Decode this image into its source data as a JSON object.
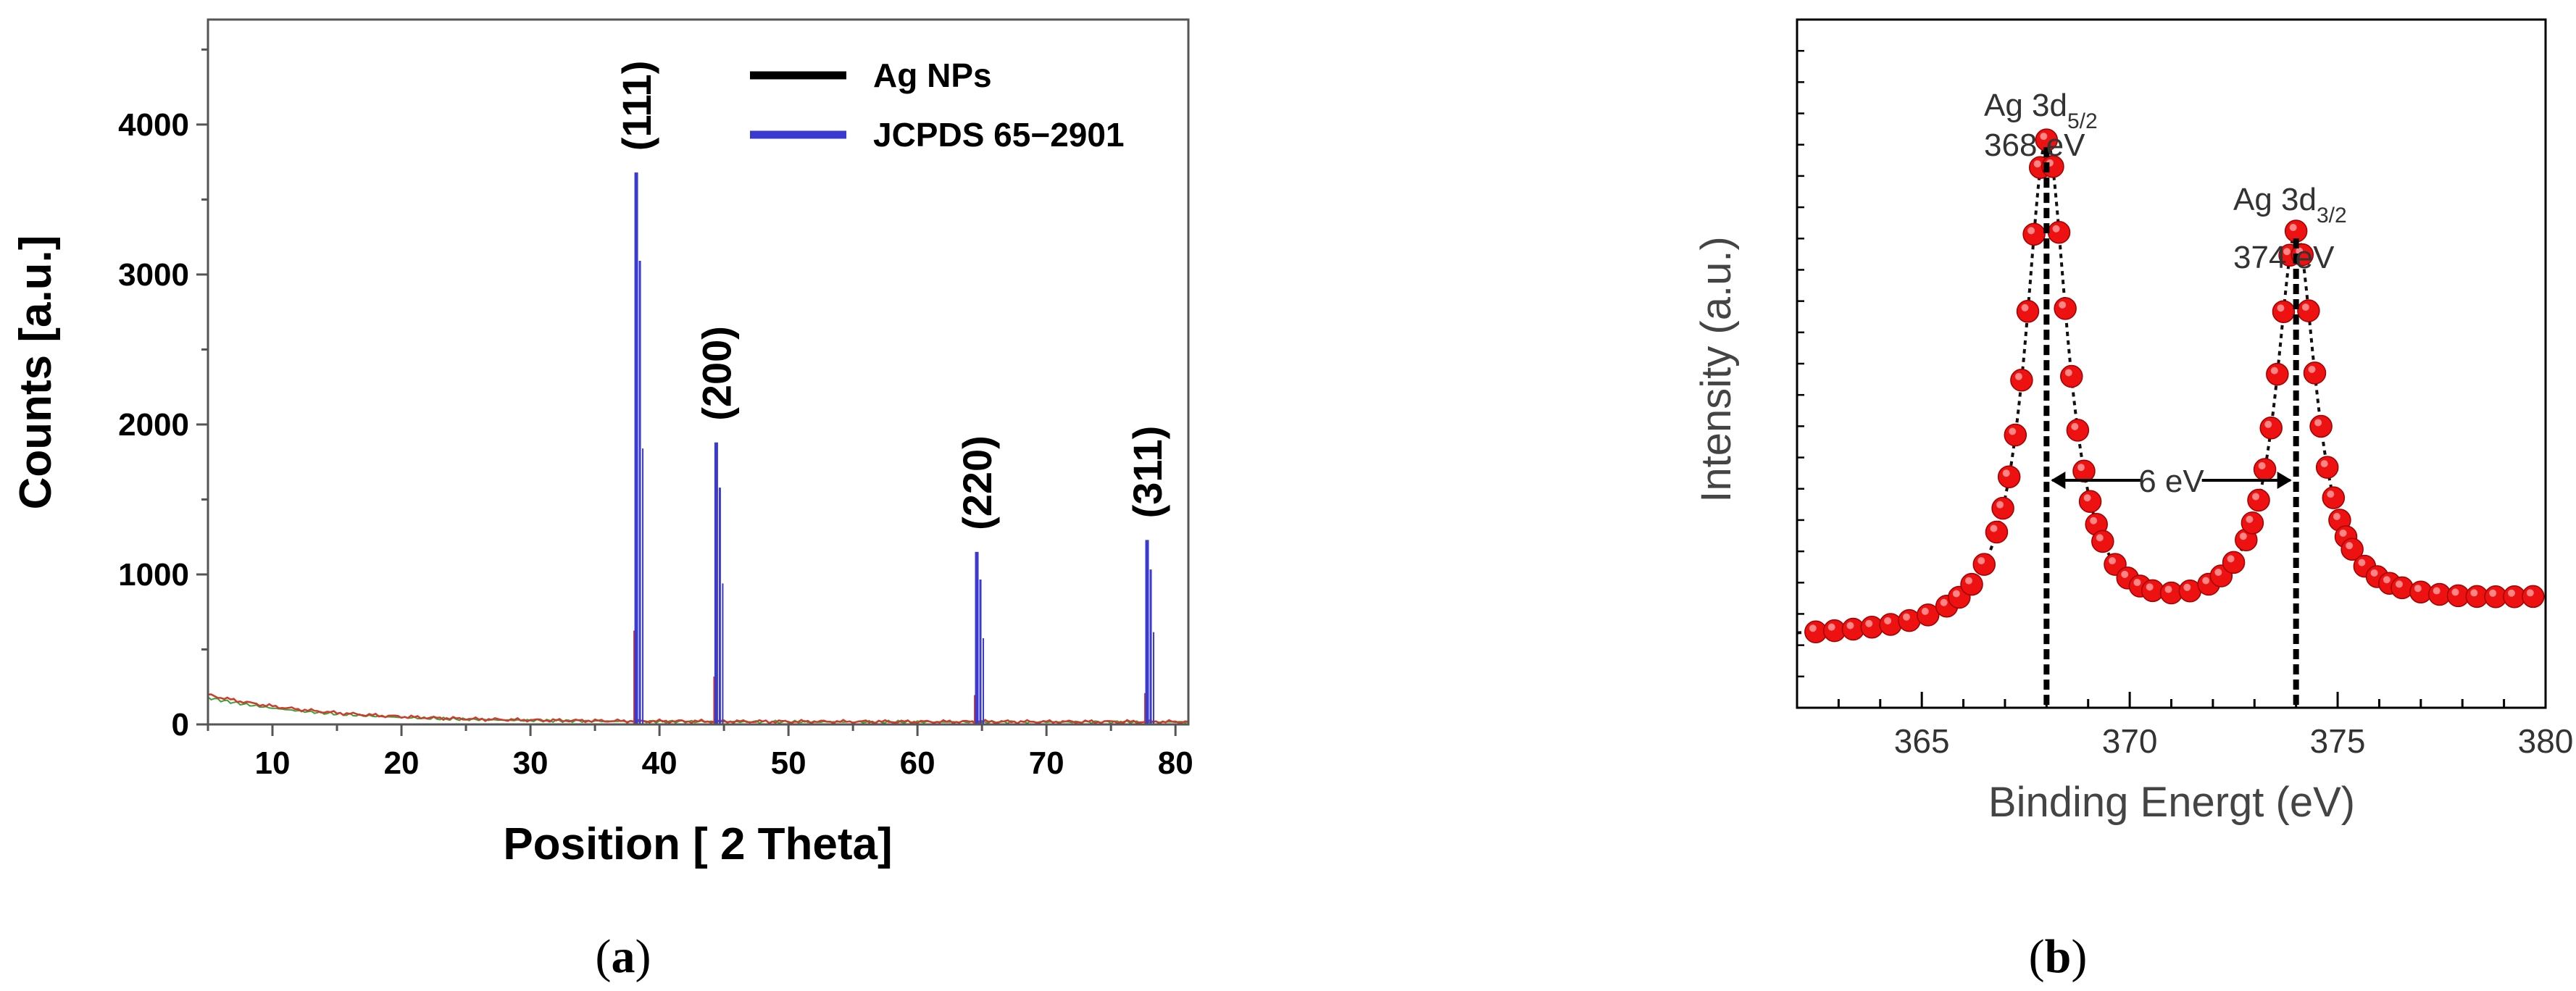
{
  "chart_data": [
    {
      "type": "line",
      "panel": "a",
      "xlabel": "Position [ 2 Theta]",
      "ylabel": "Counts [a.u.]",
      "xlim": [
        5,
        81
      ],
      "ylim": [
        0,
        4700
      ],
      "xticks": [
        10,
        20,
        30,
        40,
        50,
        60,
        70,
        80
      ],
      "yticks": [
        0,
        1000,
        2000,
        3000,
        4000
      ],
      "legend": "top-right",
      "series": [
        {
          "name": "Ag NPs",
          "color": "#000000"
        },
        {
          "name": "JCPDS 65−2901",
          "color": "#3a3ad0"
        }
      ],
      "peaks": [
        {
          "label": "(111)",
          "x": 38.2,
          "y": 3680
        },
        {
          "label": "(200)",
          "x": 44.4,
          "y": 1880
        },
        {
          "label": "(220)",
          "x": 64.6,
          "y": 1150
        },
        {
          "label": "(311)",
          "x": 77.8,
          "y": 1230
        }
      ]
    },
    {
      "type": "scatter",
      "panel": "b",
      "xlabel": "Binding Energt (eV)",
      "ylabel": "Intensity (a.u.)",
      "xlim": [
        362,
        380
      ],
      "ylim": [
        0,
        1
      ],
      "xticks": [
        365,
        370,
        375,
        380
      ],
      "color": "#ee1111",
      "peaks": [
        {
          "label_main": "Ag 3d",
          "label_sub": "5/2",
          "value": "368 eV",
          "x": 368
        },
        {
          "label_main": "Ag 3d",
          "label_sub": "3/2",
          "value": "374 eV",
          "x": 374
        }
      ],
      "separation_label": "6 eV"
    }
  ],
  "captions": {
    "a": "a",
    "b": "b"
  }
}
